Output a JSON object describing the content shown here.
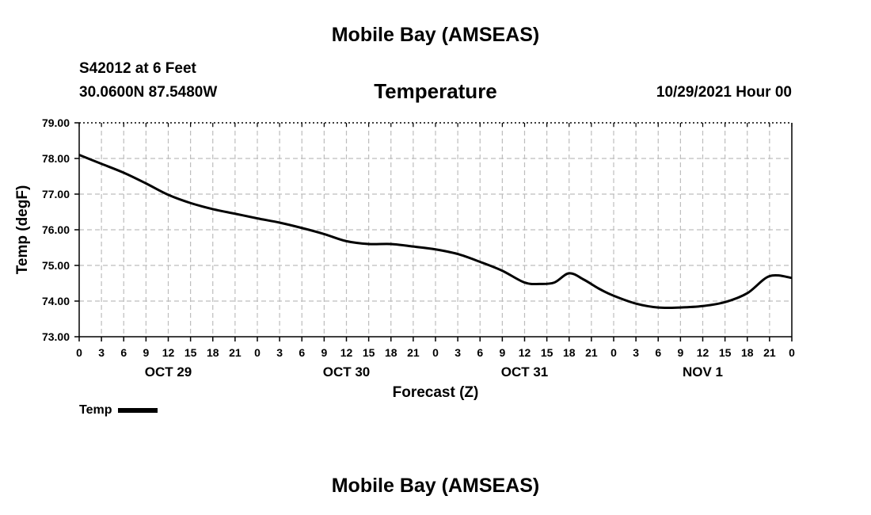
{
  "header": {
    "main_title": "Mobile Bay (AMSEAS)",
    "station": "S42012 at 6 Feet",
    "coords": "30.0600N  87.5480W",
    "chart_title": "Temperature",
    "datetime": "10/29/2021 Hour 00"
  },
  "footer": {
    "title": "Mobile Bay (AMSEAS)"
  },
  "legend": {
    "label": "Temp"
  },
  "chart_data": {
    "type": "line",
    "title": "Temperature",
    "xlabel": "Forecast (Z)",
    "ylabel": "Temp (degF)",
    "xlim": [
      0,
      96
    ],
    "ylim": [
      73,
      79
    ],
    "grid": true,
    "line_color": "#000000",
    "yticks": [
      "73.00",
      "74.00",
      "75.00",
      "76.00",
      "77.00",
      "78.00",
      "79.00"
    ],
    "xtick_labels": [
      "0",
      "3",
      "6",
      "9",
      "12",
      "15",
      "18",
      "21",
      "0",
      "3",
      "6",
      "9",
      "12",
      "15",
      "18",
      "21",
      "0",
      "3",
      "6",
      "9",
      "12",
      "15",
      "18",
      "21",
      "0",
      "3",
      "6",
      "9",
      "12",
      "15",
      "18",
      "21",
      "0"
    ],
    "day_labels": [
      "OCT 29",
      "OCT 30",
      "OCT 31",
      "NOV 1"
    ],
    "series": [
      {
        "name": "Temp",
        "x": [
          0,
          3,
          6,
          9,
          12,
          15,
          18,
          21,
          24,
          27,
          30,
          33,
          36,
          39,
          42,
          45,
          48,
          51,
          54,
          57,
          60,
          62,
          64,
          66,
          68,
          70,
          72,
          75,
          78,
          81,
          84,
          87,
          90,
          93,
          96
        ],
        "values": [
          78.1,
          77.85,
          77.6,
          77.3,
          76.98,
          76.75,
          76.58,
          76.45,
          76.32,
          76.2,
          76.05,
          75.88,
          75.68,
          75.6,
          75.6,
          75.53,
          75.45,
          75.32,
          75.1,
          74.85,
          74.52,
          74.48,
          74.52,
          74.78,
          74.6,
          74.35,
          74.15,
          73.93,
          73.82,
          73.82,
          73.86,
          73.97,
          74.22,
          74.7,
          74.65
        ]
      }
    ]
  }
}
